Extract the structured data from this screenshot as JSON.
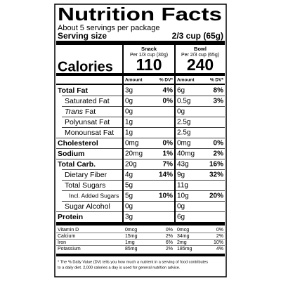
{
  "header": {
    "title": "Nutrition Facts",
    "servings": "About 5 servings per package",
    "serving_size_label": "Serving size",
    "serving_size": "2/3 cup (65g)"
  },
  "columns": [
    {
      "name": "Snack",
      "serving": "Per 1/3 cup (30g)",
      "calories": 110
    },
    {
      "name": "Bowl",
      "serving": "Per 2/3 cup (65g)",
      "calories": 240
    }
  ],
  "calories_label": "Calories",
  "subheader": {
    "amount": "Amount",
    "dv": "% DV*"
  },
  "rows": [
    {
      "label": "Total Fat",
      "level": 0,
      "values": [
        {
          "amount": "3g",
          "dv": "4%"
        },
        {
          "amount": "6g",
          "dv": "8%"
        }
      ]
    },
    {
      "label": "Saturated Fat",
      "level": 1,
      "values": [
        {
          "amount": "0g",
          "dv": "0%"
        },
        {
          "amount": "0.5g",
          "dv": "3%"
        }
      ]
    },
    {
      "label_prefix": "Trans",
      "label": "Fat",
      "level": 1,
      "values": [
        {
          "amount": "0g"
        },
        {
          "amount": "0g"
        }
      ]
    },
    {
      "label": "Polyunsat Fat",
      "level": 1,
      "values": [
        {
          "amount": "1g"
        },
        {
          "amount": "2.5g"
        }
      ]
    },
    {
      "label": "Monounsat Fat",
      "level": 1,
      "values": [
        {
          "amount": "1g"
        },
        {
          "amount": "2.5g"
        }
      ]
    },
    {
      "label": "Cholesterol",
      "level": 0,
      "values": [
        {
          "amount": "0mg",
          "dv": "0%"
        },
        {
          "amount": "0mg",
          "dv": "0%"
        }
      ]
    },
    {
      "label": "Sodium",
      "level": 0,
      "values": [
        {
          "amount": "20mg",
          "dv": "1%"
        },
        {
          "amount": "40mg",
          "dv": "2%"
        }
      ]
    },
    {
      "label": "Total Carb.",
      "level": 0,
      "values": [
        {
          "amount": "20g",
          "dv": "7%"
        },
        {
          "amount": "43g",
          "dv": "16%"
        }
      ]
    },
    {
      "label": "Dietary Fiber",
      "level": 1,
      "values": [
        {
          "amount": "4g",
          "dv": "14%"
        },
        {
          "amount": "9g",
          "dv": "32%"
        }
      ]
    },
    {
      "label": "Total Sugars",
      "level": 1,
      "values": [
        {
          "amount": "5g"
        },
        {
          "amount": "11g"
        }
      ]
    },
    {
      "label": "Incl. Added Sugars",
      "level": 2,
      "values": [
        {
          "amount": "5g",
          "dv": "10%"
        },
        {
          "amount": "10g",
          "dv": "20%"
        }
      ]
    },
    {
      "label": "Sugar Alcohol",
      "level": 1,
      "values": [
        {
          "amount": "0g"
        },
        {
          "amount": "0g"
        }
      ]
    },
    {
      "label": "Protein",
      "level": 0,
      "values": [
        {
          "amount": "3g"
        },
        {
          "amount": "6g"
        }
      ]
    }
  ],
  "vitamins": [
    {
      "label": "Vitamin D",
      "values": [
        {
          "amount": "0mcg",
          "dv": "0%"
        },
        {
          "amount": "0mcg",
          "dv": "0%"
        }
      ]
    },
    {
      "label": "Calcium",
      "values": [
        {
          "amount": "15mg",
          "dv": "2%"
        },
        {
          "amount": "34mg",
          "dv": "2%"
        }
      ]
    },
    {
      "label": "Iron",
      "values": [
        {
          "amount": "1mg",
          "dv": "6%"
        },
        {
          "amount": "2mg",
          "dv": "10%"
        }
      ]
    },
    {
      "label": "Potassium",
      "values": [
        {
          "amount": "85mg",
          "dv": "2%"
        },
        {
          "amount": "185mg",
          "dv": "4%"
        }
      ]
    }
  ],
  "footnote": {
    "lines": [
      "* The % Daily Value (DV) tells you how much a nutrient in a serving of food contributes",
      "to a daily diet. 2,000 calories a day is used for general nutrition advice."
    ]
  }
}
